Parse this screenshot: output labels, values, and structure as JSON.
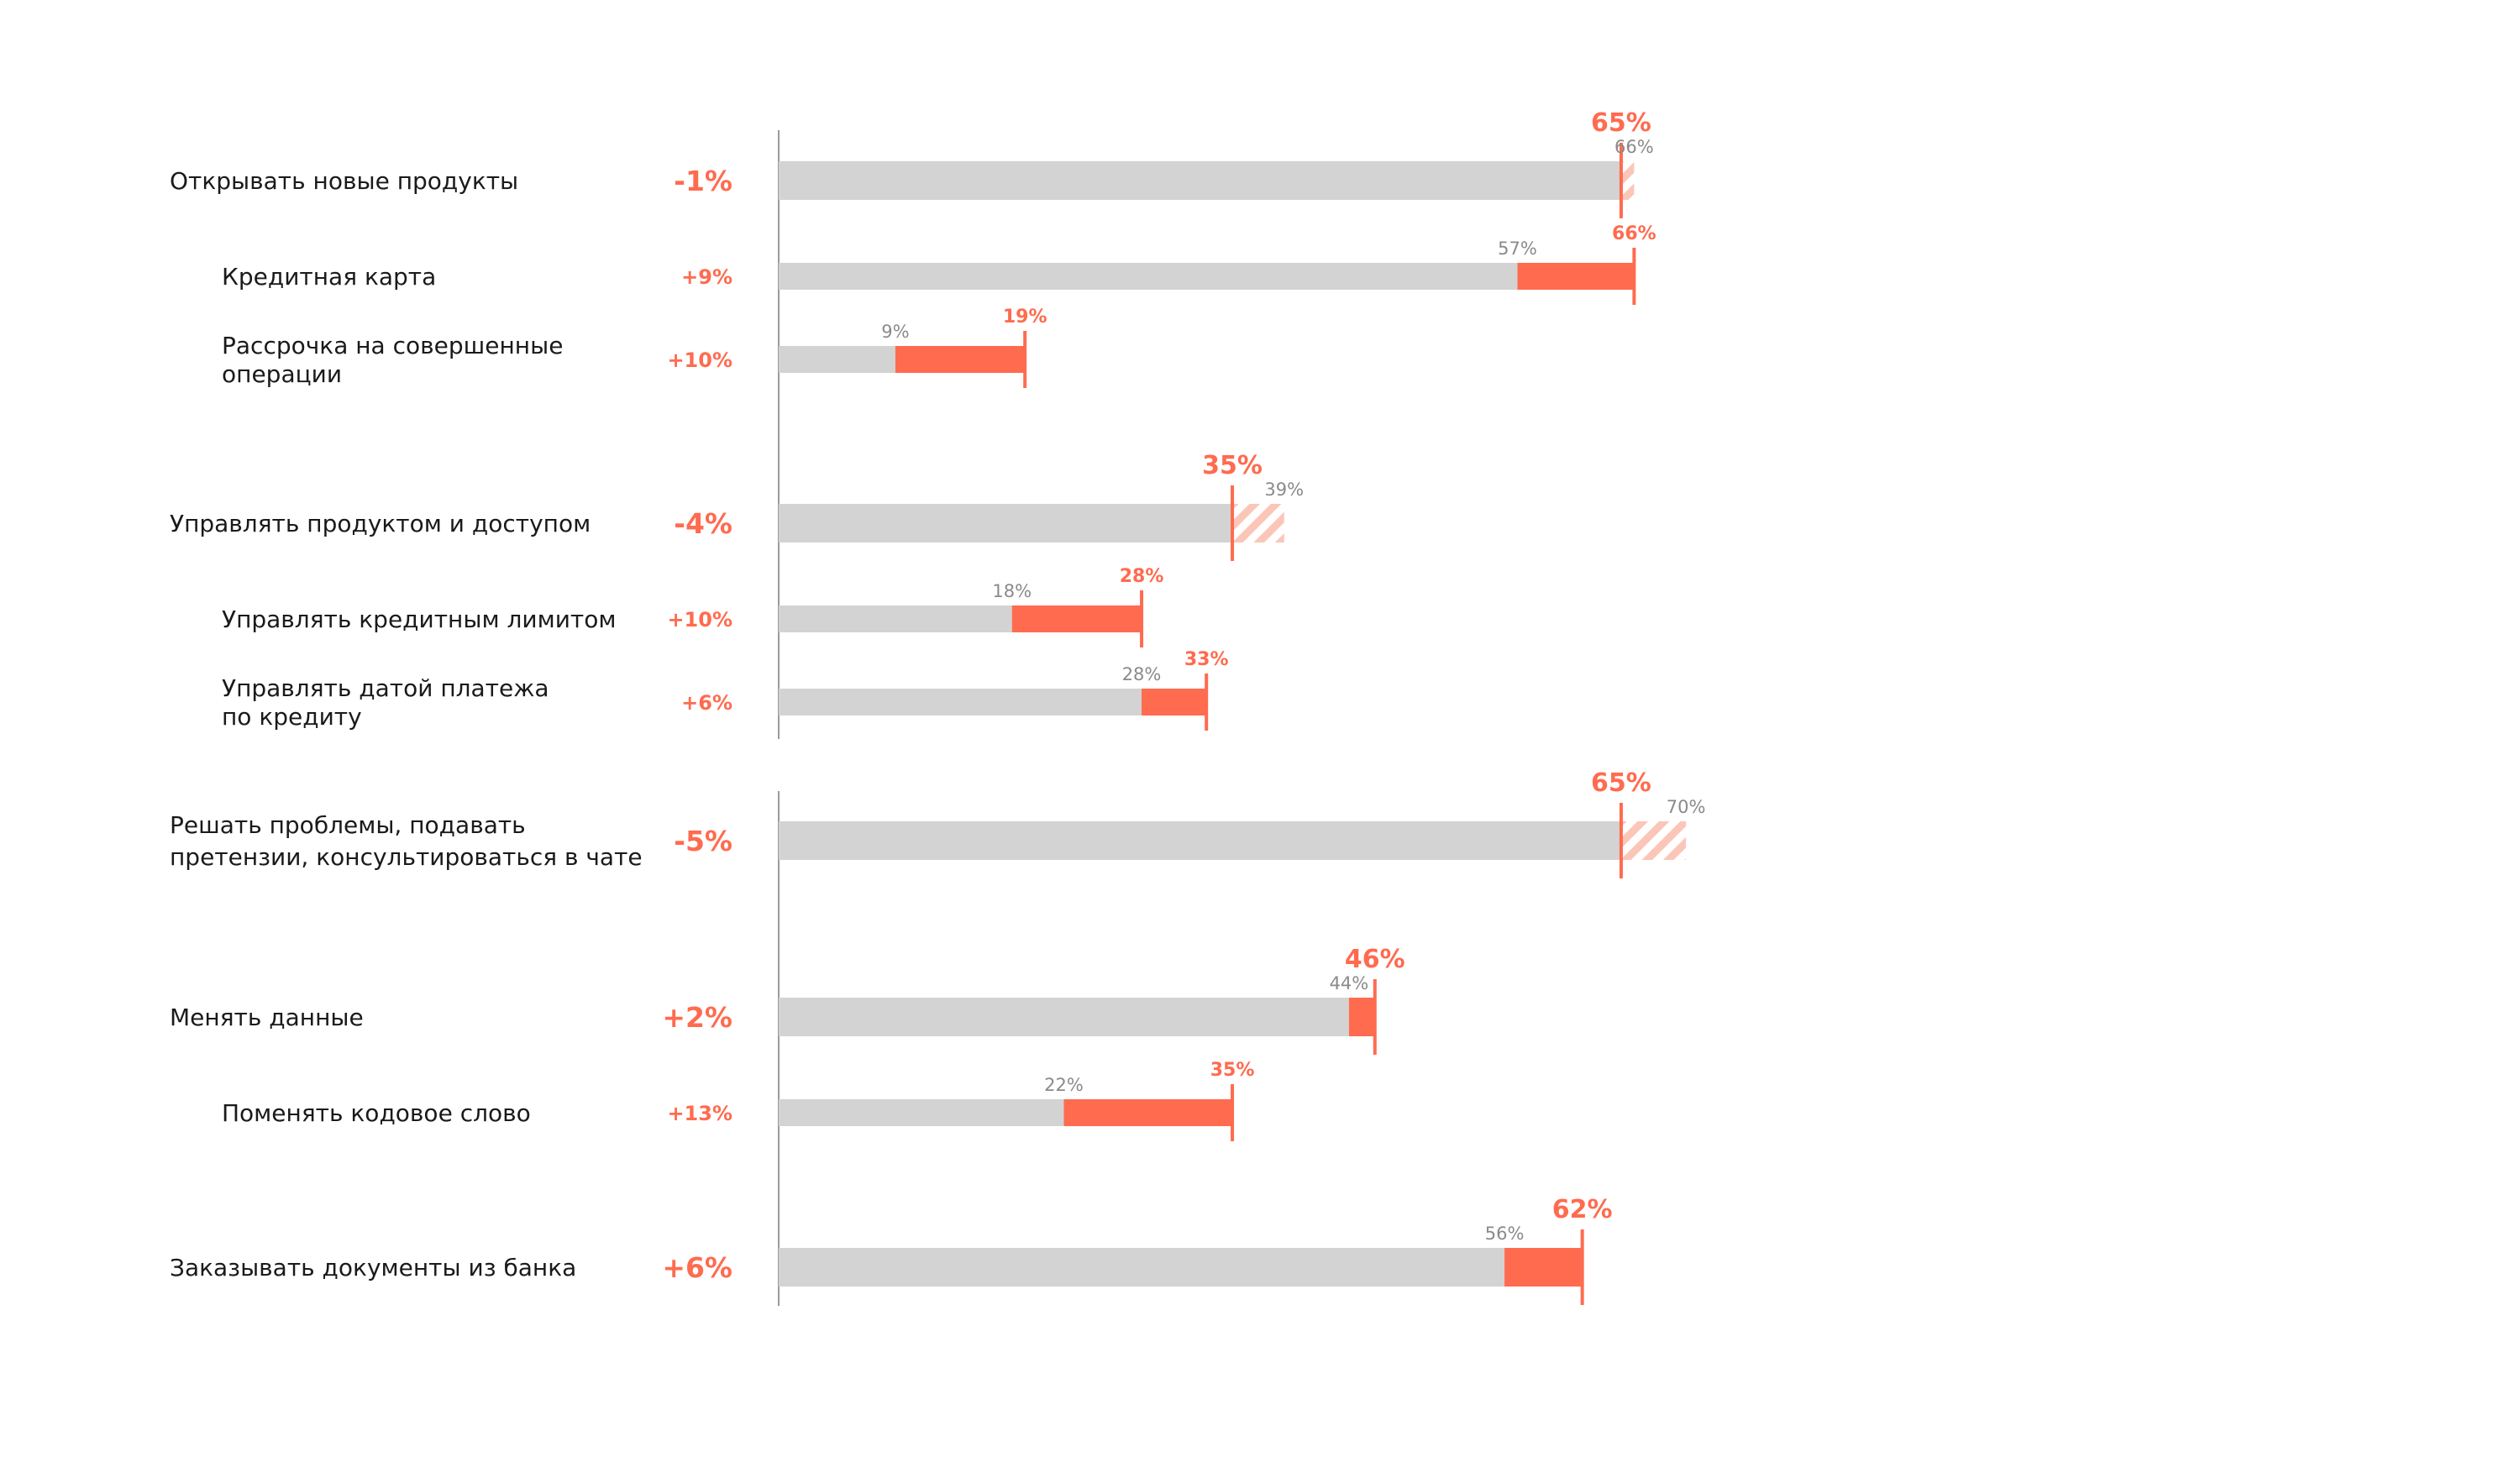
{
  "colors": {
    "accent": "#FF6B4F",
    "bar_bg": "#D3D3D3",
    "hatch": "#FBC6B8",
    "axis": "#9a9a9a",
    "old_text": "#8a8a8a",
    "text": "#1a1a1a"
  },
  "chart_data": {
    "type": "bar",
    "orientation": "horizontal",
    "title": "",
    "xlabel": "",
    "ylabel": "",
    "xlim": [
      0,
      100
    ],
    "grid": false,
    "legend": "none",
    "rows": [
      {
        "label": "Открывать новые продукты",
        "level": "main",
        "old": 66,
        "new": 65,
        "old_label": "66%",
        "new_label": "65%",
        "delta": "-1%"
      },
      {
        "label": "Кредитная карта",
        "level": "sub",
        "old": 57,
        "new": 66,
        "old_label": "57%",
        "new_label": "66%",
        "delta": "+9%"
      },
      {
        "label": "Рассрочка на совершенные операции",
        "label_lines": [
          "Рассрочка на совершенные",
          "операции"
        ],
        "level": "sub",
        "old": 9,
        "new": 19,
        "old_label": "9%",
        "new_label": "19%",
        "delta": "+10%"
      },
      {
        "label": "Управлять продуктом и доступом",
        "level": "main",
        "old": 39,
        "new": 35,
        "old_label": "39%",
        "new_label": "35%",
        "delta": "-4%"
      },
      {
        "label": "Управлять кредитным лимитом",
        "level": "sub",
        "old": 18,
        "new": 28,
        "old_label": "18%",
        "new_label": "28%",
        "delta": "+10%"
      },
      {
        "label": "Управлять датой платежа по кредиту",
        "label_lines": [
          "Управлять датой платежа",
          "по кредиту"
        ],
        "level": "sub",
        "old": 28,
        "new": 33,
        "old_label": "28%",
        "new_label": "33%",
        "delta": "+6%"
      },
      {
        "label": "Решать проблемы, подавать претензии, консультироваться в чате",
        "label_lines": [
          "Решать проблемы, подавать",
          "претензии, консультироваться в чате"
        ],
        "level": "main",
        "old": 70,
        "new": 65,
        "old_label": "70%",
        "new_label": "65%",
        "delta": "-5%"
      },
      {
        "label": "Менять данные",
        "level": "main",
        "old": 44,
        "new": 46,
        "old_label": "44%",
        "new_label": "46%",
        "delta": "+2%"
      },
      {
        "label": "Поменять кодовое слово",
        "level": "sub",
        "old": 22,
        "new": 35,
        "old_label": "22%",
        "new_label": "35%",
        "delta": "+13%"
      },
      {
        "label": "Заказывать документы из банка",
        "level": "main",
        "old": 56,
        "new": 62,
        "old_label": "56%",
        "new_label": "62%",
        "delta": "+6%"
      }
    ]
  }
}
